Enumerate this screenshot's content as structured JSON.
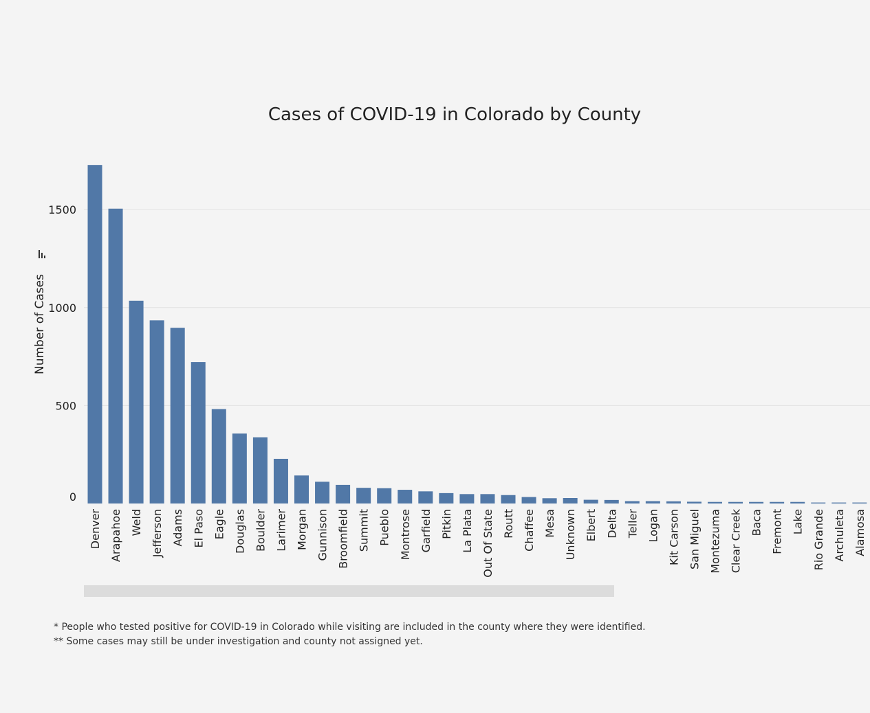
{
  "chart_data": {
    "type": "bar",
    "title": "Cases of COVID-19 in Colorado by County",
    "xlabel": "",
    "ylabel": "Number of Cases",
    "ylim": [
      0,
      1740
    ],
    "yticks": [
      0,
      500,
      1000,
      1500
    ],
    "grid": true,
    "bar_color": "#5178a7",
    "categories": [
      "Denver",
      "Arapahoe",
      "Weld",
      "Jefferson",
      "Adams",
      "El Paso",
      "Eagle",
      "Douglas",
      "Boulder",
      "Larimer",
      "Morgan",
      "Gunnison",
      "Broomfield",
      "Summit",
      "Pueblo",
      "Montrose",
      "Garfield",
      "Pitkin",
      "La Plata",
      "Out Of State",
      "Routt",
      "Chaffee",
      "Mesa",
      "Unknown",
      "Elbert",
      "Delta",
      "Teller",
      "Logan",
      "Kit Carson",
      "San Miguel",
      "Montezuma",
      "Clear Creek",
      "Baca",
      "Fremont",
      "Lake",
      "Rio Grande",
      "Archuleta",
      "Alamosa"
    ],
    "values": [
      1728,
      1505,
      1035,
      935,
      897,
      722,
      482,
      357,
      338,
      228,
      143,
      111,
      95,
      80,
      78,
      70,
      62,
      53,
      48,
      48,
      43,
      33,
      27,
      28,
      19,
      18,
      12,
      12,
      11,
      9,
      8,
      8,
      8,
      8,
      8,
      5,
      5,
      5
    ]
  },
  "footnotes": [
    "* People who tested positive for COVID-19 in Colorado while visiting are included in the county where they were identified.",
    "** Some cases may still be under investigation and county not assigned yet."
  ]
}
